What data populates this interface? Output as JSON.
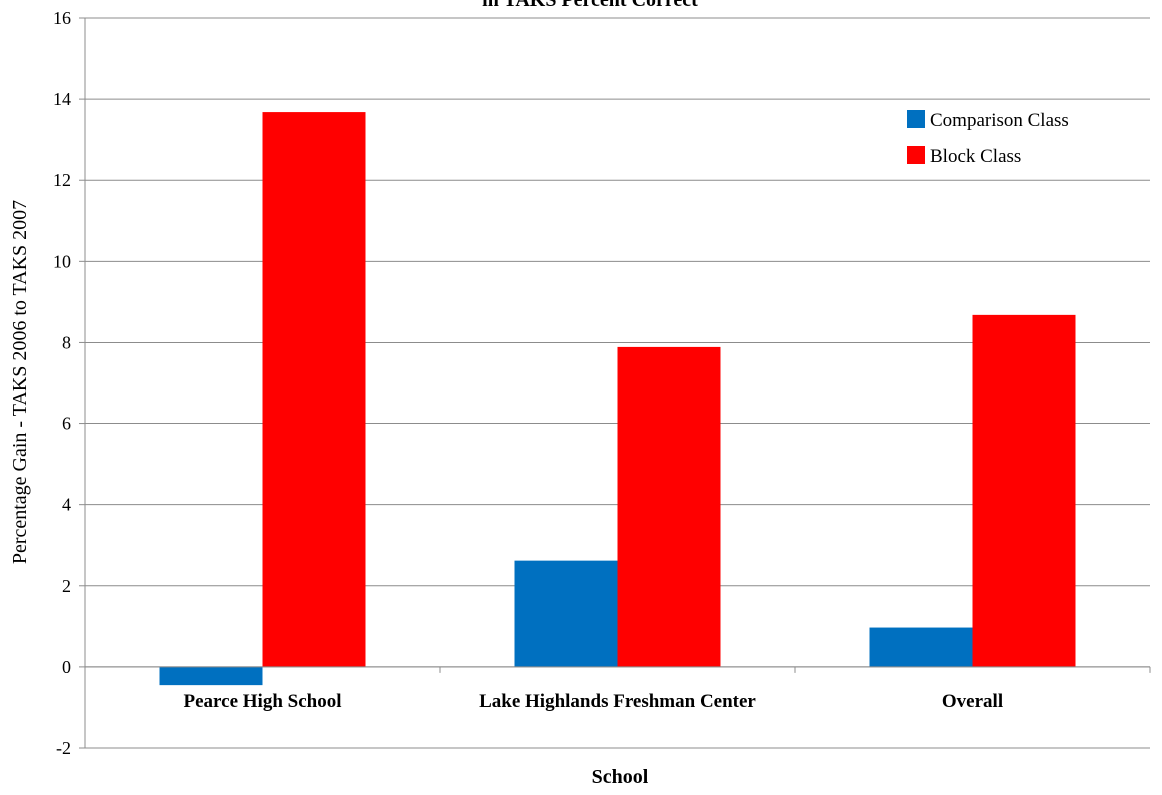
{
  "chart_data": {
    "type": "bar",
    "title": "in TAKS Percent Correct",
    "xlabel": "School",
    "ylabel": "Percentage Gain -   TAKS 2006 to TAKS 2007",
    "categories": [
      "Pearce High School",
      "Lake Highlands Freshman Center",
      "Overall"
    ],
    "series": [
      {
        "name": "Comparison Class",
        "color": "#0070c0",
        "values": [
          -0.45,
          2.62,
          0.97
        ]
      },
      {
        "name": "Block Class",
        "color": "#ff0000",
        "values": [
          13.68,
          7.89,
          8.68
        ]
      }
    ],
    "ylim": [
      -2,
      16
    ],
    "yticks": [
      -2,
      0,
      2,
      4,
      6,
      8,
      10,
      12,
      14,
      16
    ],
    "grid": true,
    "legend_position": "top-right"
  }
}
